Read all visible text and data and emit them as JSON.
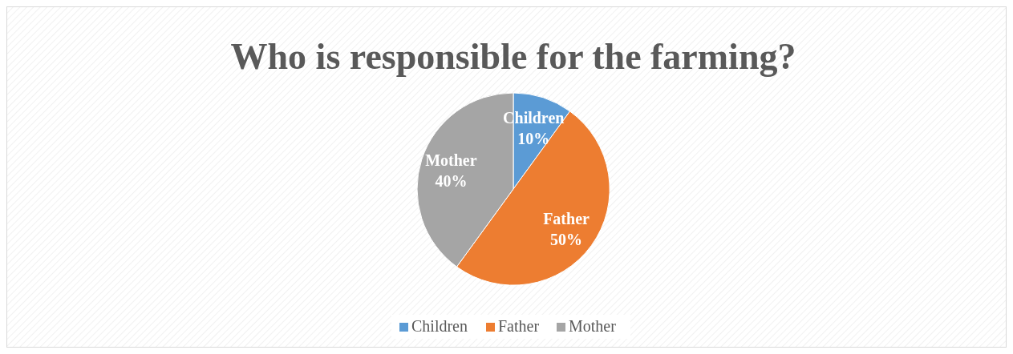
{
  "chart_data": {
    "type": "pie",
    "title": "Who is responsible for the farming?",
    "categories": [
      "Children",
      "Father",
      "Mother"
    ],
    "values": [
      10,
      50,
      40
    ],
    "colors": [
      "#5b9bd5",
      "#ed7d31",
      "#a5a5a5"
    ],
    "value_labels": [
      "10%",
      "50%",
      "40%"
    ],
    "legend": "bottom"
  }
}
